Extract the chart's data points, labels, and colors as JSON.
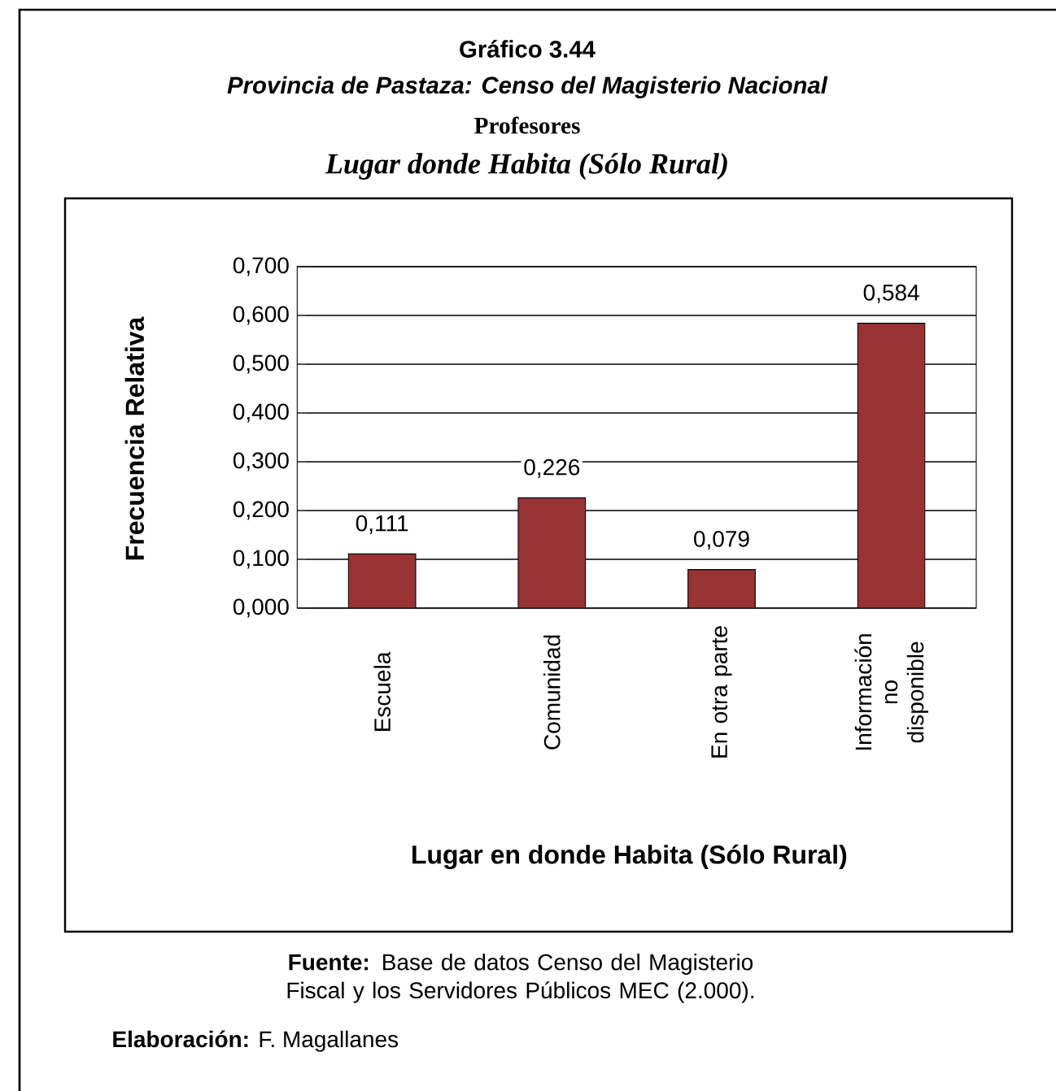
{
  "chart_data": {
    "type": "bar",
    "title": "Gráfico 3.44",
    "subtitle": "Provincia de Pastaza: Censo del Magisterio Nacional",
    "annotations": [
      "Profesores",
      "Lugar donde Habita (Sólo Rural)",
      "**Fuente:** Base de datos Censo del Magisterio Fiscal y los Servidores Públicos MEC (2.000).",
      "**Elaboración:** F. Magallanes"
    ],
    "xlabel": "Lugar en donde Habita (Sólo Rural)",
    "ylabel": "Frecuencia Relativa",
    "categories": [
      "Escuela",
      "Comunidad",
      "En otra parte",
      "Información no disponible"
    ],
    "values": [
      0.111,
      0.226,
      0.079,
      0.584
    ],
    "value_labels": [
      "0,111",
      "0,226",
      "0,079",
      "0,584"
    ],
    "color": "#993333",
    "ylim": [
      0,
      0.7
    ],
    "yticks": [
      {
        "value": 0,
        "label": "0,000"
      },
      {
        "value": 0.1,
        "label": "0,100"
      },
      {
        "value": 0.2,
        "label": "0,200"
      },
      {
        "value": 0.3,
        "label": "0,300"
      },
      {
        "value": 0.4,
        "label": "0,400"
      },
      {
        "value": 0.5,
        "label": "0,500"
      },
      {
        "value": 0.6,
        "label": "0,600"
      },
      {
        "value": 0.7,
        "label": "0,700"
      }
    ],
    "grid": "y"
  }
}
